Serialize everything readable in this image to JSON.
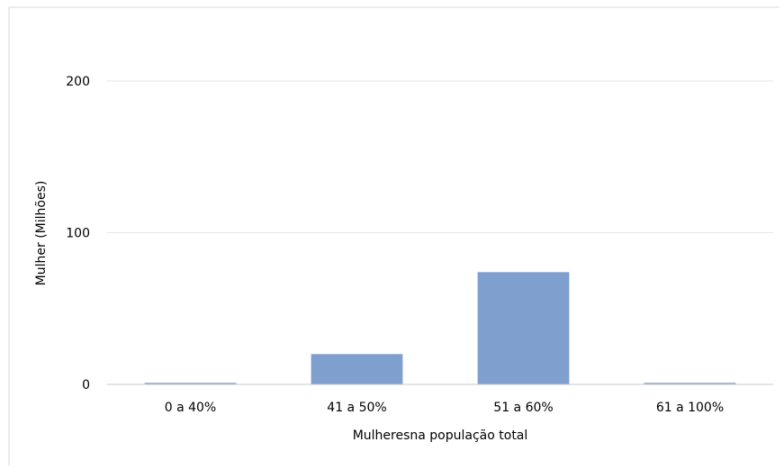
{
  "chart_data": {
    "type": "bar",
    "categories": [
      "0 a 40%",
      "41 a 50%",
      "51 a 60%",
      "61 a 100%"
    ],
    "values": [
      1,
      20,
      74,
      1
    ],
    "xlabel": "Mulheresna população total",
    "ylabel": "Mulher (Milhões)",
    "ylim": [
      0,
      200
    ],
    "yticks": [
      0,
      100,
      200
    ],
    "grid": true,
    "legend": false,
    "bar_color": "#7F9FCF",
    "grid_color": "#E6E6E6",
    "axis_color": "#C8C8C8",
    "frame_color": "#D9D9D9"
  }
}
